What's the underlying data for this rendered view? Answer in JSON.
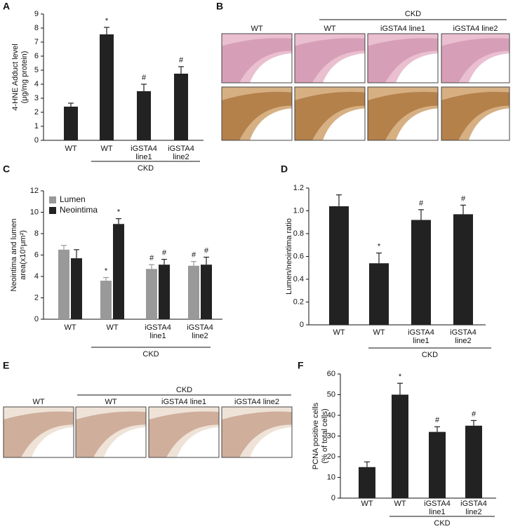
{
  "chart_data": [
    {
      "type": "bar",
      "panel": "A",
      "ylabel": [
        "4-HNE Adduct level",
        "(μg/mg protein)"
      ],
      "categories": [
        [
          "WT"
        ],
        [
          "WT"
        ],
        [
          "iGSTA4",
          "line1"
        ],
        [
          "iGSTA4",
          "line2"
        ]
      ],
      "values": [
        2.4,
        7.55,
        3.5,
        4.75
      ],
      "errors": [
        0.25,
        0.5,
        0.5,
        0.5
      ],
      "annotations": [
        null,
        "*",
        "#",
        "#"
      ],
      "color": "#222222",
      "group_label": "CKD",
      "ylim": [
        0,
        9
      ],
      "yticks": [
        0,
        1,
        2,
        3,
        4,
        5,
        6,
        7,
        8,
        9
      ]
    },
    {
      "type": "bar",
      "panel": "C",
      "ylabel": [
        "Neointima and lumen",
        "area(x10⁵μm²)"
      ],
      "categories": [
        [
          "WT"
        ],
        [
          "WT"
        ],
        [
          "iGSTA4",
          "line1"
        ],
        [
          "iGSTA4",
          "line2"
        ]
      ],
      "series": [
        {
          "name": "Lumen",
          "color": "#999999",
          "values": [
            6.5,
            3.6,
            4.7,
            5.0
          ],
          "errors": [
            0.4,
            0.3,
            0.4,
            0.4
          ],
          "annotations": [
            null,
            "*",
            "#",
            "#"
          ]
        },
        {
          "name": "Neointima",
          "color": "#222222",
          "values": [
            5.7,
            8.9,
            5.1,
            5.1
          ],
          "errors": [
            0.8,
            0.5,
            0.5,
            0.7
          ],
          "annotations": [
            null,
            "*",
            "#",
            "#"
          ]
        }
      ],
      "group_label": "CKD",
      "legend": "top-left",
      "ylim": [
        0,
        12
      ],
      "yticks": [
        0,
        2,
        4,
        6,
        8,
        10,
        12
      ]
    },
    {
      "type": "bar",
      "panel": "D",
      "ylabel": [
        "Lumen/neointima ratio"
      ],
      "categories": [
        [
          "WT"
        ],
        [
          "WT"
        ],
        [
          "iGSTA4",
          "line1"
        ],
        [
          "iGSTA4",
          "line2"
        ]
      ],
      "values": [
        1.04,
        0.54,
        0.92,
        0.97
      ],
      "errors": [
        0.1,
        0.09,
        0.09,
        0.08
      ],
      "annotations": [
        null,
        "*",
        "#",
        "#"
      ],
      "color": "#222222",
      "group_label": "CKD",
      "ylim": [
        0,
        1.2
      ],
      "yticks": [
        0,
        0.2,
        0.4,
        0.6,
        0.8,
        {
          "value": 1,
          "label": "1.0"
        },
        1.2
      ]
    },
    {
      "type": "bar",
      "panel": "F",
      "ylabel": [
        "PCNA positive cells",
        "(% of total cells)"
      ],
      "categories": [
        [
          "WT"
        ],
        [
          "WT"
        ],
        [
          "iGSTA4",
          "line1"
        ],
        [
          "iGSTA4",
          "line2"
        ]
      ],
      "values": [
        15,
        50,
        32,
        35
      ],
      "errors": [
        2.5,
        5.5,
        2.5,
        2.5
      ],
      "annotations": [
        null,
        "*",
        "#",
        "#"
      ],
      "color": "#222222",
      "group_label": "CKD",
      "ylim": [
        0,
        60
      ],
      "yticks": [
        0,
        10,
        20,
        30,
        40,
        50,
        60
      ]
    }
  ],
  "image_panels": [
    {
      "panel": "B",
      "group_label": "CKD",
      "columns": [
        "WT",
        "WT",
        "iGSTA4 line1",
        "iGSTA4 line2"
      ]
    },
    {
      "panel": "E",
      "group_label": "CKD",
      "columns": [
        "WT",
        "WT",
        "iGSTA4 line1",
        "iGSTA4 line2"
      ]
    }
  ]
}
